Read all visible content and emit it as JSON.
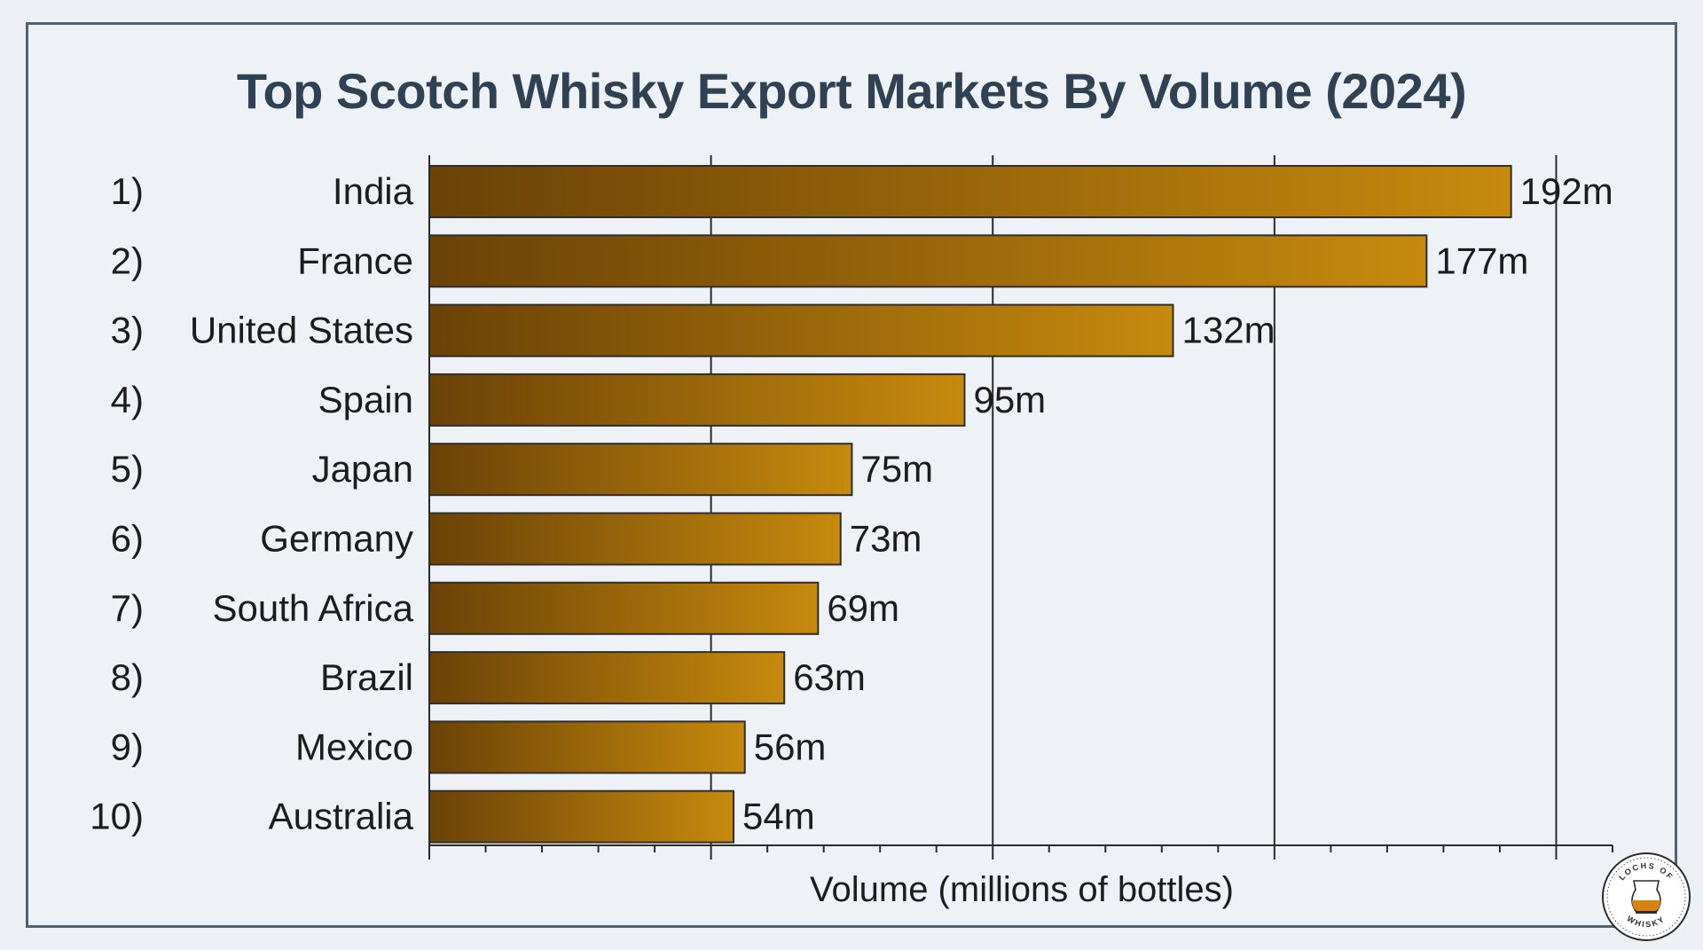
{
  "colors": {
    "background": "#eef2f7",
    "frame": "#4f6272",
    "title": "#2f4152",
    "text": "#1c1c1c",
    "bar_dark": "#6b4207",
    "bar_light": "#c78a0e",
    "bar_stroke": "#2e2e2e"
  },
  "chart_data": {
    "type": "bar",
    "orientation": "horizontal",
    "title": "Top Scotch Whisky Export Markets By Volume (2024)",
    "xlabel": "Volume (millions of bottles)",
    "ylabel": "",
    "xlim": [
      0,
      210
    ],
    "x_major_ticks": [
      0,
      50,
      100,
      150,
      200
    ],
    "x_minor_step": 10,
    "x_tick_labels_shown": false,
    "grid": "vertical major gridlines",
    "ranks": [
      "1)",
      "2)",
      "3)",
      "4)",
      "5)",
      "6)",
      "7)",
      "8)",
      "9)",
      "10)"
    ],
    "categories": [
      "India",
      "France",
      "United States",
      "Spain",
      "Japan",
      "Germany",
      "South Africa",
      "Brazil",
      "Mexico",
      "Australia"
    ],
    "values": [
      192,
      177,
      132,
      95,
      75,
      73,
      69,
      63,
      56,
      54
    ],
    "value_labels": [
      "192m",
      "177m",
      "132m",
      "95m",
      "75m",
      "73m",
      "69m",
      "63m",
      "56m",
      "54m"
    ]
  },
  "logo": {
    "icon": "whisky-glass-icon",
    "top_text": "LOCHS OF",
    "bottom_text": "WHISKY"
  }
}
